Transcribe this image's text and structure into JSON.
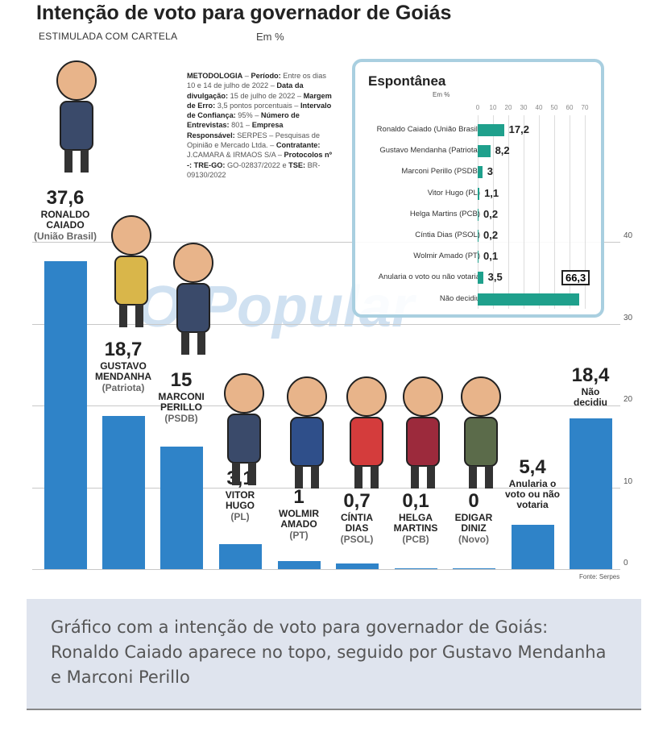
{
  "header": {
    "title": "Intenção de voto para governador de Goiás",
    "subtitle": "ESTIMULADA COM CARTELA",
    "unit": "Em %"
  },
  "methodology": [
    {
      "b": "METODOLOGIA",
      "t": " – "
    },
    {
      "b": "Período:",
      "t": " Entre os dias 10 e 14 de julho de 2022 – "
    },
    {
      "b": "Data da divulgação:",
      "t": " 15 de julho de 2022 – "
    },
    {
      "b": "Margem de Erro:",
      "t": " 3,5 pontos porcentuais – "
    },
    {
      "b": "Intervalo de Confiança:",
      "t": " 95% – "
    },
    {
      "b": "Número de Entrevistas:",
      "t": " 801 – "
    },
    {
      "b": "Empresa Responsável:",
      "t": " SERPES – Pesquisas de Opinião e Mercado Ltda. – "
    },
    {
      "b": "Contratante:",
      "t": " J.CAMARA & IRMAOS S/A – "
    },
    {
      "b": "Protocolos nº -: TRE-GO:",
      "t": " GO-02837/2022 e "
    },
    {
      "b": "TSE:",
      "t": " BR-09130/2022"
    }
  ],
  "watermark": "O Popular",
  "source": "Fonte: Serpes",
  "chart_data": [
    {
      "type": "bar",
      "title": "Intenção de voto para governador de Goiás",
      "subtitle": "ESTIMULADA COM CARTELA",
      "ylabel": "Em %",
      "ylim": [
        0,
        40
      ],
      "yticks": [
        0,
        10,
        20,
        30,
        40
      ],
      "categories": [
        {
          "value": "37,6",
          "name": [
            "RONALDO",
            "CAIADO"
          ],
          "party": "(União Brasil)",
          "num": 37.6
        },
        {
          "value": "18,7",
          "name": [
            "GUSTAVO",
            "MENDANHA"
          ],
          "party": "(Patriota)",
          "num": 18.7
        },
        {
          "value": "15",
          "name": [
            "MARCONI",
            "PERILLO"
          ],
          "party": "(PSDB)",
          "num": 15
        },
        {
          "value": "3,1",
          "name": [
            "VITOR",
            "HUGO"
          ],
          "party": "(PL)",
          "num": 3.1
        },
        {
          "value": "1",
          "name": [
            "WOLMIR",
            "AMADO"
          ],
          "party": "(PT)",
          "num": 1
        },
        {
          "value": "0,7",
          "name": [
            "CÍNTIA",
            "DIAS"
          ],
          "party": "(PSOL)",
          "num": 0.7
        },
        {
          "value": "0,1",
          "name": [
            "HELGA",
            "MARTINS"
          ],
          "party": "(PCB)",
          "num": 0.1
        },
        {
          "value": "0",
          "name": [
            "EDIGAR",
            "DINIZ"
          ],
          "party": "(Novo)",
          "num": 0
        },
        {
          "value": "5,4",
          "name": [
            "Anularia o",
            "voto ou não",
            "votaria"
          ],
          "party": "",
          "num": 5.4
        },
        {
          "value": "18,4",
          "name": [
            "Não",
            "decidiu"
          ],
          "party": "",
          "num": 18.4
        }
      ],
      "color": "#2f83c8"
    },
    {
      "type": "bar",
      "orientation": "horizontal",
      "title": "Espontânea",
      "unit": "Em %",
      "xlim": [
        0,
        70
      ],
      "xticks": [
        0,
        10,
        20,
        30,
        40,
        50,
        60,
        70
      ],
      "categories": [
        "Ronaldo Caiado (União Brasil)",
        "Gustavo Mendanha (Patriota)",
        "Marconi Perillo (PSDB)",
        "Vitor Hugo (PL)",
        "Helga Martins (PCB)",
        "Cíntia Dias (PSOL)",
        "Wolmir Amado (PT)",
        "Anularia o voto ou não votaria",
        "Não decidiu"
      ],
      "values": [
        17.2,
        8.2,
        3,
        1.1,
        0.2,
        0.2,
        0.1,
        3.5,
        66.3
      ],
      "labels": [
        "17,2",
        "8,2",
        "3",
        "1,1",
        "0,2",
        "0,2",
        "0,1",
        "3,5",
        "66,3"
      ],
      "color": "#1fa08c"
    }
  ],
  "caption": "Gráfico com a intenção de voto para governador de Goiás: Ronaldo Caiado aparece no topo, seguido por Gustavo Mendanha e Marconi Perillo"
}
